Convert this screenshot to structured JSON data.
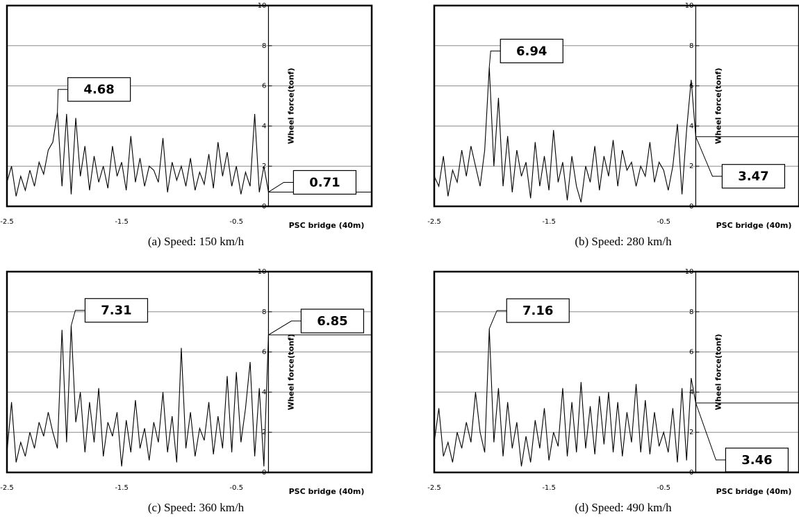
{
  "chart_data": [
    {
      "type": "line",
      "caption": "(a) Speed: 150 km/h",
      "xlabel": "PSC bridge (40m)",
      "ylabel": "Wheel force(tonf)",
      "xlim": [
        -2.5,
        0.68
      ],
      "ylim": [
        0,
        10
      ],
      "xticks": [
        -2.5,
        -1.5,
        -0.5
      ],
      "yticks": [
        0,
        2,
        4,
        6,
        8,
        10
      ],
      "y_axis_at": -0.22,
      "grid": true,
      "color": "#000000",
      "x": [
        -2.5,
        -2.46,
        -2.42,
        -2.38,
        -2.34,
        -2.3,
        -2.26,
        -2.22,
        -2.18,
        -2.14,
        -2.1,
        -2.06,
        -2.02,
        -1.98,
        -1.94,
        -1.9,
        -1.86,
        -1.82,
        -1.78,
        -1.74,
        -1.7,
        -1.66,
        -1.62,
        -1.58,
        -1.54,
        -1.5,
        -1.46,
        -1.42,
        -1.38,
        -1.34,
        -1.3,
        -1.26,
        -1.22,
        -1.18,
        -1.14,
        -1.1,
        -1.06,
        -1.02,
        -0.98,
        -0.94,
        -0.9,
        -0.86,
        -0.82,
        -0.78,
        -0.74,
        -0.7,
        -0.66,
        -0.62,
        -0.58,
        -0.54,
        -0.5,
        -0.46,
        -0.42,
        -0.38,
        -0.34,
        -0.3,
        -0.26,
        -0.22
      ],
      "values": [
        1.2,
        2.0,
        0.5,
        1.5,
        0.8,
        1.8,
        1.0,
        2.2,
        1.6,
        2.8,
        3.2,
        4.68,
        1.0,
        4.6,
        0.6,
        4.4,
        1.5,
        3.0,
        0.8,
        2.5,
        1.2,
        2.0,
        0.9,
        3.0,
        1.5,
        2.2,
        0.8,
        3.5,
        1.2,
        2.4,
        1.0,
        2.0,
        1.8,
        1.2,
        3.4,
        0.7,
        2.2,
        1.3,
        2.0,
        1.0,
        2.4,
        0.8,
        1.7,
        1.1,
        2.6,
        0.9,
        3.2,
        1.5,
        2.7,
        1.0,
        2.0,
        0.6,
        1.7,
        1.0,
        4.6,
        0.7,
        2.0,
        0.71
      ],
      "annotations": [
        {
          "value": 4.68,
          "x": -2.06,
          "level_line": false
        },
        {
          "value": 0.71,
          "x": -0.22,
          "level_line": true
        }
      ]
    },
    {
      "type": "line",
      "caption": "(b) Speed: 280 km/h",
      "xlabel": "PSC bridge (40m)",
      "ylabel": "Wheel force(tonf)",
      "xlim": [
        -2.5,
        0.68
      ],
      "ylim": [
        0,
        10
      ],
      "xticks": [
        -2.5,
        -1.5,
        -0.5
      ],
      "yticks": [
        0,
        2,
        4,
        6,
        8,
        10
      ],
      "y_axis_at": -0.22,
      "grid": true,
      "color": "#000000",
      "x": [
        -2.5,
        -2.46,
        -2.42,
        -2.38,
        -2.34,
        -2.3,
        -2.26,
        -2.22,
        -2.18,
        -2.14,
        -2.1,
        -2.06,
        -2.02,
        -1.98,
        -1.94,
        -1.9,
        -1.86,
        -1.82,
        -1.78,
        -1.74,
        -1.7,
        -1.66,
        -1.62,
        -1.58,
        -1.54,
        -1.5,
        -1.46,
        -1.42,
        -1.38,
        -1.34,
        -1.3,
        -1.26,
        -1.22,
        -1.18,
        -1.14,
        -1.1,
        -1.06,
        -1.02,
        -0.98,
        -0.94,
        -0.9,
        -0.86,
        -0.82,
        -0.78,
        -0.74,
        -0.7,
        -0.66,
        -0.62,
        -0.58,
        -0.54,
        -0.5,
        -0.46,
        -0.42,
        -0.38,
        -0.34,
        -0.3,
        -0.26,
        -0.22
      ],
      "values": [
        1.5,
        1.0,
        2.5,
        0.5,
        1.8,
        1.2,
        2.8,
        1.5,
        3.0,
        2.0,
        1.0,
        2.8,
        6.94,
        2.0,
        5.4,
        1.0,
        3.5,
        0.7,
        2.8,
        1.5,
        2.2,
        0.4,
        3.2,
        1.0,
        2.5,
        0.8,
        3.8,
        1.2,
        2.2,
        0.3,
        2.5,
        1.0,
        0.2,
        2.0,
        1.2,
        3.0,
        0.8,
        2.5,
        1.5,
        3.3,
        1.0,
        2.8,
        1.8,
        2.2,
        1.0,
        2.0,
        1.5,
        3.2,
        1.2,
        2.2,
        1.8,
        0.8,
        2.0,
        4.1,
        0.6,
        3.8,
        6.3,
        3.47
      ],
      "annotations": [
        {
          "value": 6.94,
          "x": -2.02,
          "level_line": false
        },
        {
          "value": 3.47,
          "x": -0.22,
          "level_line": true
        }
      ]
    },
    {
      "type": "line",
      "caption": "(c) Speed: 360 km/h",
      "xlabel": "PSC bridge (40m)",
      "ylabel": "Wheel force(tonf)",
      "xlim": [
        -2.5,
        0.68
      ],
      "ylim": [
        0,
        10
      ],
      "xticks": [
        -2.5,
        -1.5,
        -0.5
      ],
      "yticks": [
        0,
        2,
        4,
        6,
        8,
        10
      ],
      "y_axis_at": -0.22,
      "grid": true,
      "color": "#000000",
      "x": [
        -2.5,
        -2.46,
        -2.42,
        -2.38,
        -2.34,
        -2.3,
        -2.26,
        -2.22,
        -2.18,
        -2.14,
        -2.1,
        -2.06,
        -2.02,
        -1.98,
        -1.94,
        -1.9,
        -1.86,
        -1.82,
        -1.78,
        -1.74,
        -1.7,
        -1.66,
        -1.62,
        -1.58,
        -1.54,
        -1.5,
        -1.46,
        -1.42,
        -1.38,
        -1.34,
        -1.3,
        -1.26,
        -1.22,
        -1.18,
        -1.14,
        -1.1,
        -1.06,
        -1.02,
        -0.98,
        -0.94,
        -0.9,
        -0.86,
        -0.82,
        -0.78,
        -0.74,
        -0.7,
        -0.66,
        -0.62,
        -0.58,
        -0.54,
        -0.5,
        -0.46,
        -0.42,
        -0.38,
        -0.34,
        -0.3,
        -0.26,
        -0.22
      ],
      "values": [
        1.0,
        3.5,
        0.5,
        1.5,
        0.8,
        2.0,
        1.2,
        2.5,
        1.8,
        3.0,
        2.0,
        1.2,
        7.1,
        1.5,
        7.31,
        2.5,
        4.0,
        1.0,
        3.5,
        1.5,
        4.2,
        0.8,
        2.5,
        1.8,
        3.0,
        0.3,
        2.6,
        1.0,
        3.6,
        1.2,
        2.2,
        0.6,
        2.5,
        1.5,
        4.0,
        1.0,
        2.8,
        0.5,
        6.2,
        1.2,
        3.0,
        0.8,
        2.2,
        1.6,
        3.5,
        0.9,
        2.8,
        1.2,
        4.8,
        1.0,
        5.0,
        1.5,
        3.2,
        5.5,
        0.8,
        4.2,
        0.3,
        6.85
      ],
      "annotations": [
        {
          "value": 7.31,
          "x": -1.94,
          "level_line": false
        },
        {
          "value": 6.85,
          "x": -0.22,
          "level_line": true
        }
      ]
    },
    {
      "type": "line",
      "caption": "(d) Speed: 490 km/h",
      "xlabel": "PSC bridge (40m)",
      "ylabel": "Wheel force(tonf)",
      "xlim": [
        -2.5,
        0.68
      ],
      "ylim": [
        0,
        10
      ],
      "xticks": [
        -2.5,
        -1.5,
        -0.5
      ],
      "yticks": [
        0,
        2,
        4,
        6,
        8,
        10
      ],
      "y_axis_at": -0.22,
      "grid": true,
      "color": "#000000",
      "x": [
        -2.5,
        -2.46,
        -2.42,
        -2.38,
        -2.34,
        -2.3,
        -2.26,
        -2.22,
        -2.18,
        -2.14,
        -2.1,
        -2.06,
        -2.02,
        -1.98,
        -1.94,
        -1.9,
        -1.86,
        -1.82,
        -1.78,
        -1.74,
        -1.7,
        -1.66,
        -1.62,
        -1.58,
        -1.54,
        -1.5,
        -1.46,
        -1.42,
        -1.38,
        -1.34,
        -1.3,
        -1.26,
        -1.22,
        -1.18,
        -1.14,
        -1.1,
        -1.06,
        -1.02,
        -0.98,
        -0.94,
        -0.9,
        -0.86,
        -0.82,
        -0.78,
        -0.74,
        -0.7,
        -0.66,
        -0.62,
        -0.58,
        -0.54,
        -0.5,
        -0.46,
        -0.42,
        -0.38,
        -0.34,
        -0.3,
        -0.26,
        -0.22
      ],
      "values": [
        1.5,
        3.2,
        0.8,
        1.5,
        0.5,
        2.0,
        1.2,
        2.5,
        1.5,
        4.0,
        2.0,
        1.0,
        7.16,
        1.5,
        4.2,
        0.8,
        3.5,
        1.2,
        2.5,
        0.3,
        1.8,
        0.5,
        2.6,
        1.2,
        3.2,
        0.6,
        2.0,
        1.3,
        4.2,
        0.8,
        3.5,
        1.0,
        4.5,
        1.2,
        3.3,
        0.9,
        3.8,
        1.4,
        4.0,
        1.0,
        3.5,
        0.8,
        3.0,
        1.5,
        4.4,
        1.0,
        3.6,
        0.9,
        3.0,
        1.3,
        2.0,
        1.0,
        3.2,
        0.5,
        4.2,
        0.6,
        4.7,
        3.46
      ],
      "annotations": [
        {
          "value": 7.16,
          "x": -2.02,
          "level_line": false
        },
        {
          "value": 3.46,
          "x": -0.22,
          "level_line": true
        }
      ]
    }
  ]
}
